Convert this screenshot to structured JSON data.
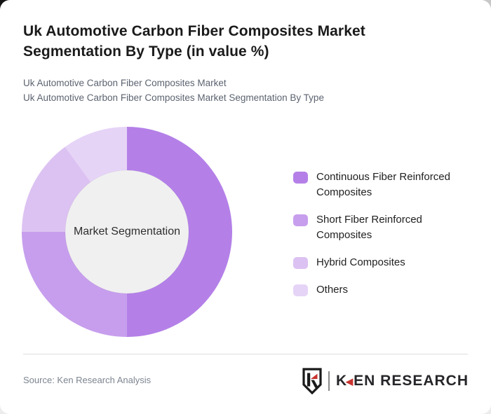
{
  "header": {
    "title": "Uk Automotive Carbon Fiber Composites Market Segmentation By Type (in value %)",
    "subtitle_line1": "Uk Automotive Carbon Fiber Composites Market",
    "subtitle_line2": "Uk Automotive Carbon Fiber Composites Market Segmentation By Type"
  },
  "chart_data": {
    "type": "pie",
    "variant": "donut",
    "title": "Uk Automotive Carbon Fiber Composites Market Segmentation By Type (in value %)",
    "unit": "value %",
    "center_label": "Market Segmentation",
    "labels": [
      "Continuous Fiber Reinforced Composites",
      "Short Fiber Reinforced Composites",
      "Hybrid Composites",
      "Others"
    ],
    "values": [
      50,
      25,
      15,
      10
    ],
    "colors": [
      "#b480e8",
      "#c79eed",
      "#dcc2f2",
      "#e6d4f7"
    ],
    "center_color": "#f0f0f1",
    "start_angle_deg": 0,
    "direction": "clockwise",
    "legend_position": "right"
  },
  "footer": {
    "source": "Source: Ken Research Analysis",
    "logo": {
      "k": "K",
      "rest": "EN RESEARCH"
    }
  }
}
